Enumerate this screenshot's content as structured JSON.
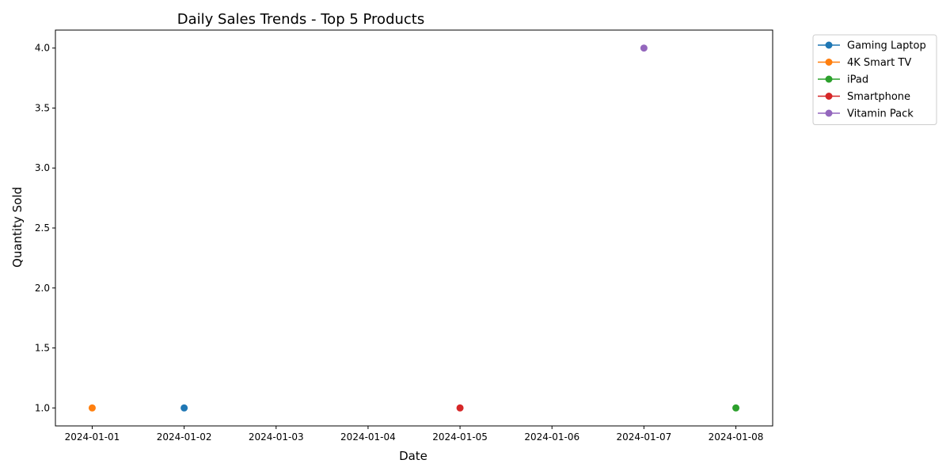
{
  "chart_data": {
    "type": "line",
    "title": "Daily Sales Trends - Top 5 Products",
    "xlabel": "Date",
    "ylabel": "Quantity Sold",
    "x_ticks": [
      "2024-01-01",
      "2024-01-02",
      "2024-01-03",
      "2024-01-04",
      "2024-01-05",
      "2024-01-06",
      "2024-01-07",
      "2024-01-08"
    ],
    "y_ticks": [
      "1.0",
      "1.5",
      "2.0",
      "2.5",
      "3.0",
      "3.5",
      "4.0"
    ],
    "xlim": [
      "2023-12-31T14:24",
      "2024-01-08T09:36"
    ],
    "ylim": [
      0.85,
      4.15
    ],
    "grid": false,
    "legend_position": "outside-top-right",
    "series": [
      {
        "name": "Gaming Laptop",
        "color": "#1f77b4",
        "points": [
          {
            "x": "2024-01-02",
            "y": 1
          }
        ]
      },
      {
        "name": "4K Smart TV",
        "color": "#ff7f0e",
        "points": [
          {
            "x": "2024-01-01",
            "y": 1
          }
        ]
      },
      {
        "name": "iPad",
        "color": "#2ca02c",
        "points": [
          {
            "x": "2024-01-08",
            "y": 1
          }
        ]
      },
      {
        "name": "Smartphone",
        "color": "#d62728",
        "points": [
          {
            "x": "2024-01-05",
            "y": 1
          }
        ]
      },
      {
        "name": "Vitamin Pack",
        "color": "#9467bd",
        "points": [
          {
            "x": "2024-01-07",
            "y": 4
          }
        ]
      }
    ]
  }
}
